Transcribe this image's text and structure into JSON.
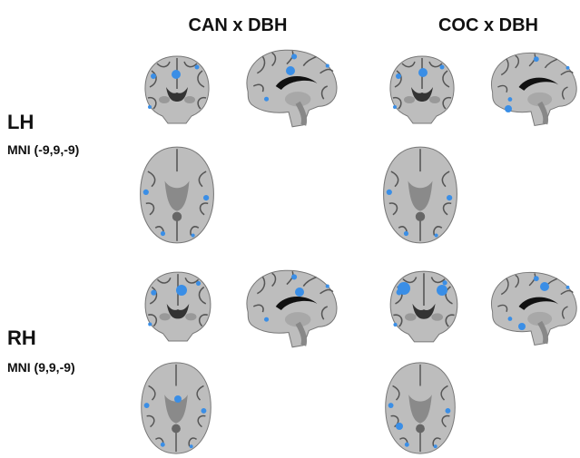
{
  "columns": [
    "CAN x DBH",
    "COC x DBH"
  ],
  "rows": [
    {
      "label": "LH",
      "coords": "MNI (-9,9,-9)"
    },
    {
      "label": "RH",
      "coords": "MNI (9,9,-9)"
    }
  ]
}
